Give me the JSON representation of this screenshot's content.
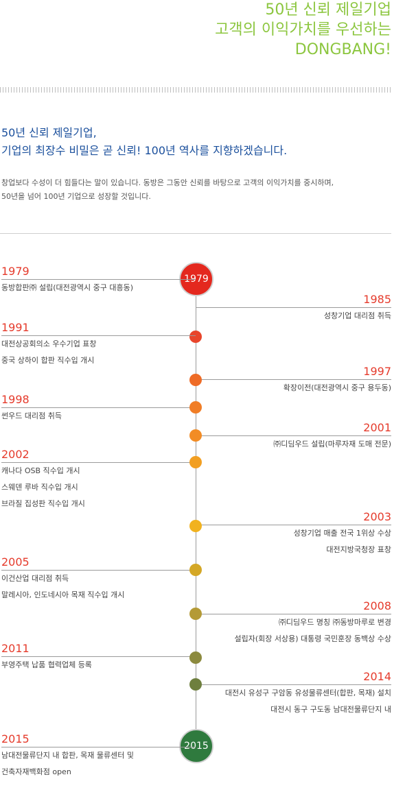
{
  "hero": {
    "line1": "50년 신뢰 제일기업",
    "line2": "고객의 이익가치를 우선하는",
    "line3": "DONGBANG!"
  },
  "intro": {
    "heading1": "50년 신뢰 제일기업,",
    "heading2": "기업의 최장수 비밀은 곧 신뢰! 100년 역사를 지향하겠습니다.",
    "body1": "창업보다 수성이 더 힘들다는 말이 있습니다. 동방은 그동안 신뢰를 바탕으로 고객의 이익가치를 중시하며,",
    "body2": "50년을 넘어 100년 기업으로 성장할 것입니다."
  },
  "timeline": {
    "start_badge": "1979",
    "end_badge": "2015",
    "events": [
      {
        "year": "1979",
        "color": "#e53a2b",
        "lines": [
          "동방합판㈜ 설립(대전광역시 중구 대흥동)"
        ]
      },
      {
        "year": "1985",
        "color": "#e8452b",
        "lines": [
          "성창기업 대리점 취득"
        ]
      },
      {
        "year": "1991",
        "color": "#ea5a28",
        "lines": [
          "대전상공회의소 우수기업 표창",
          "중국 상하이 합판 직수입 개시"
        ]
      },
      {
        "year": "1997",
        "color": "#ee6b26",
        "lines": [
          "확장이전(대전광역시 중구 용두동)"
        ]
      },
      {
        "year": "1998",
        "color": "#f07d26",
        "lines": [
          "썬우드 대리점 취득"
        ]
      },
      {
        "year": "2001",
        "color": "#f28c25",
        "lines": [
          "㈜디딤우드 설립(마루자재 도매 전문)"
        ]
      },
      {
        "year": "2002",
        "color": "#f29f22",
        "lines": [
          "캐나다 OSB 직수입 개시",
          "스웨덴 루바 직수입 개시",
          "브라질 집성판 직수입 개시"
        ]
      },
      {
        "year": "2003",
        "color": "#f1b21f",
        "lines": [
          "성창기업 매출 전국 1위상 수상",
          "대전지방국청장 표창"
        ]
      },
      {
        "year": "2005",
        "color": "#d4a726",
        "lines": [
          "이건산업 대리점 취득",
          "말레시아, 인도네시아 목재 직수입 개시"
        ]
      },
      {
        "year": "2008",
        "color": "#b49a36",
        "lines": [
          "㈜디딤우드 명칭 ㈜동방마루로 변경",
          "설립자(회장 서상용) 대통령 국민훈장 동백상 수상"
        ]
      },
      {
        "year": "2011",
        "color": "#8c8a3e",
        "lines": [
          "부영주택 납품 협력업체 등록"
        ]
      },
      {
        "year": "2014",
        "color": "#6e7f3e",
        "lines": [
          "대전시 유성구 구암동 유성물류센터(합판, 목재) 설치",
          "대전시 동구 구도동 남대전물류단지 내"
        ]
      },
      {
        "year": "2015",
        "color": "#3f7b44",
        "lines": [
          "남대전물류단지 내 합판, 목재 물류센터 및",
          "건축자재백화점 open"
        ]
      }
    ]
  }
}
